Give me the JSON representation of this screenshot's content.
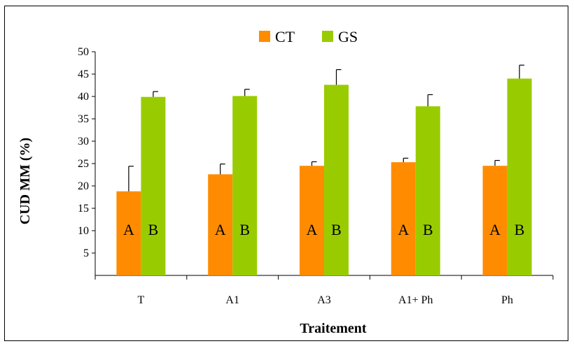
{
  "chart_data": {
    "type": "bar",
    "title": "",
    "xlabel": "Traitement",
    "ylabel": "CUD MM (%)",
    "ylim": [
      0,
      50
    ],
    "yticks": [
      5,
      10,
      15,
      20,
      25,
      30,
      35,
      40,
      45,
      50
    ],
    "grid": false,
    "legend_position": "top-center",
    "categories": [
      "T",
      "A1",
      "A3",
      "A1+ Ph",
      "Ph"
    ],
    "series": [
      {
        "name": "CT",
        "color": "#FF8C00",
        "values": [
          18.8,
          22.6,
          24.5,
          25.3,
          24.5
        ],
        "errors": [
          5.6,
          2.3,
          0.9,
          0.9,
          1.2
        ],
        "labels": [
          "A",
          "A",
          "A",
          "A",
          "A"
        ]
      },
      {
        "name": "GS",
        "color": "#99CC00",
        "values": [
          39.9,
          40.1,
          42.6,
          37.8,
          44.0
        ],
        "errors": [
          1.2,
          1.5,
          3.4,
          2.6,
          3.0
        ],
        "labels": [
          "B",
          "B",
          "B",
          "B",
          "B"
        ]
      }
    ]
  }
}
